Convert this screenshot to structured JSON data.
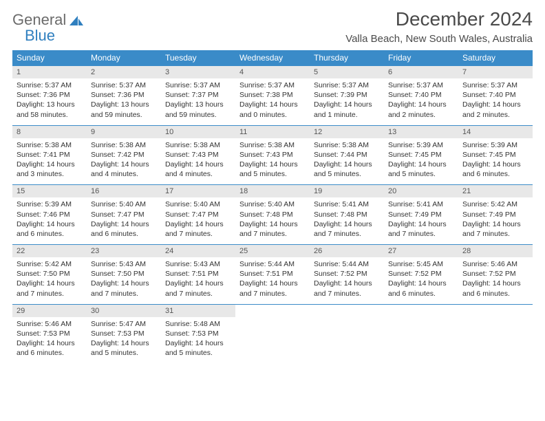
{
  "brand": {
    "general": "General",
    "blue": "Blue"
  },
  "title": "December 2024",
  "location": "Valla Beach, New South Wales, Australia",
  "colors": {
    "header_bg": "#3a8bc8",
    "header_text": "#ffffff",
    "daynum_bg": "#e8e8e8",
    "border": "#3a8bc8",
    "text": "#333333",
    "logo_gray": "#6b6b6b",
    "logo_blue": "#2f7fbf"
  },
  "day_headers": [
    "Sunday",
    "Monday",
    "Tuesday",
    "Wednesday",
    "Thursday",
    "Friday",
    "Saturday"
  ],
  "weeks": [
    {
      "nums": [
        "1",
        "2",
        "3",
        "4",
        "5",
        "6",
        "7"
      ],
      "cells": [
        {
          "sunrise": "Sunrise: 5:37 AM",
          "sunset": "Sunset: 7:36 PM",
          "daylight": "Daylight: 13 hours and 58 minutes."
        },
        {
          "sunrise": "Sunrise: 5:37 AM",
          "sunset": "Sunset: 7:36 PM",
          "daylight": "Daylight: 13 hours and 59 minutes."
        },
        {
          "sunrise": "Sunrise: 5:37 AM",
          "sunset": "Sunset: 7:37 PM",
          "daylight": "Daylight: 13 hours and 59 minutes."
        },
        {
          "sunrise": "Sunrise: 5:37 AM",
          "sunset": "Sunset: 7:38 PM",
          "daylight": "Daylight: 14 hours and 0 minutes."
        },
        {
          "sunrise": "Sunrise: 5:37 AM",
          "sunset": "Sunset: 7:39 PM",
          "daylight": "Daylight: 14 hours and 1 minute."
        },
        {
          "sunrise": "Sunrise: 5:37 AM",
          "sunset": "Sunset: 7:40 PM",
          "daylight": "Daylight: 14 hours and 2 minutes."
        },
        {
          "sunrise": "Sunrise: 5:37 AM",
          "sunset": "Sunset: 7:40 PM",
          "daylight": "Daylight: 14 hours and 2 minutes."
        }
      ]
    },
    {
      "nums": [
        "8",
        "9",
        "10",
        "11",
        "12",
        "13",
        "14"
      ],
      "cells": [
        {
          "sunrise": "Sunrise: 5:38 AM",
          "sunset": "Sunset: 7:41 PM",
          "daylight": "Daylight: 14 hours and 3 minutes."
        },
        {
          "sunrise": "Sunrise: 5:38 AM",
          "sunset": "Sunset: 7:42 PM",
          "daylight": "Daylight: 14 hours and 4 minutes."
        },
        {
          "sunrise": "Sunrise: 5:38 AM",
          "sunset": "Sunset: 7:43 PM",
          "daylight": "Daylight: 14 hours and 4 minutes."
        },
        {
          "sunrise": "Sunrise: 5:38 AM",
          "sunset": "Sunset: 7:43 PM",
          "daylight": "Daylight: 14 hours and 5 minutes."
        },
        {
          "sunrise": "Sunrise: 5:38 AM",
          "sunset": "Sunset: 7:44 PM",
          "daylight": "Daylight: 14 hours and 5 minutes."
        },
        {
          "sunrise": "Sunrise: 5:39 AM",
          "sunset": "Sunset: 7:45 PM",
          "daylight": "Daylight: 14 hours and 5 minutes."
        },
        {
          "sunrise": "Sunrise: 5:39 AM",
          "sunset": "Sunset: 7:45 PM",
          "daylight": "Daylight: 14 hours and 6 minutes."
        }
      ]
    },
    {
      "nums": [
        "15",
        "16",
        "17",
        "18",
        "19",
        "20",
        "21"
      ],
      "cells": [
        {
          "sunrise": "Sunrise: 5:39 AM",
          "sunset": "Sunset: 7:46 PM",
          "daylight": "Daylight: 14 hours and 6 minutes."
        },
        {
          "sunrise": "Sunrise: 5:40 AM",
          "sunset": "Sunset: 7:47 PM",
          "daylight": "Daylight: 14 hours and 6 minutes."
        },
        {
          "sunrise": "Sunrise: 5:40 AM",
          "sunset": "Sunset: 7:47 PM",
          "daylight": "Daylight: 14 hours and 7 minutes."
        },
        {
          "sunrise": "Sunrise: 5:40 AM",
          "sunset": "Sunset: 7:48 PM",
          "daylight": "Daylight: 14 hours and 7 minutes."
        },
        {
          "sunrise": "Sunrise: 5:41 AM",
          "sunset": "Sunset: 7:48 PM",
          "daylight": "Daylight: 14 hours and 7 minutes."
        },
        {
          "sunrise": "Sunrise: 5:41 AM",
          "sunset": "Sunset: 7:49 PM",
          "daylight": "Daylight: 14 hours and 7 minutes."
        },
        {
          "sunrise": "Sunrise: 5:42 AM",
          "sunset": "Sunset: 7:49 PM",
          "daylight": "Daylight: 14 hours and 7 minutes."
        }
      ]
    },
    {
      "nums": [
        "22",
        "23",
        "24",
        "25",
        "26",
        "27",
        "28"
      ],
      "cells": [
        {
          "sunrise": "Sunrise: 5:42 AM",
          "sunset": "Sunset: 7:50 PM",
          "daylight": "Daylight: 14 hours and 7 minutes."
        },
        {
          "sunrise": "Sunrise: 5:43 AM",
          "sunset": "Sunset: 7:50 PM",
          "daylight": "Daylight: 14 hours and 7 minutes."
        },
        {
          "sunrise": "Sunrise: 5:43 AM",
          "sunset": "Sunset: 7:51 PM",
          "daylight": "Daylight: 14 hours and 7 minutes."
        },
        {
          "sunrise": "Sunrise: 5:44 AM",
          "sunset": "Sunset: 7:51 PM",
          "daylight": "Daylight: 14 hours and 7 minutes."
        },
        {
          "sunrise": "Sunrise: 5:44 AM",
          "sunset": "Sunset: 7:52 PM",
          "daylight": "Daylight: 14 hours and 7 minutes."
        },
        {
          "sunrise": "Sunrise: 5:45 AM",
          "sunset": "Sunset: 7:52 PM",
          "daylight": "Daylight: 14 hours and 6 minutes."
        },
        {
          "sunrise": "Sunrise: 5:46 AM",
          "sunset": "Sunset: 7:52 PM",
          "daylight": "Daylight: 14 hours and 6 minutes."
        }
      ]
    },
    {
      "nums": [
        "29",
        "30",
        "31",
        "",
        "",
        "",
        ""
      ],
      "cells": [
        {
          "sunrise": "Sunrise: 5:46 AM",
          "sunset": "Sunset: 7:53 PM",
          "daylight": "Daylight: 14 hours and 6 minutes."
        },
        {
          "sunrise": "Sunrise: 5:47 AM",
          "sunset": "Sunset: 7:53 PM",
          "daylight": "Daylight: 14 hours and 5 minutes."
        },
        {
          "sunrise": "Sunrise: 5:48 AM",
          "sunset": "Sunset: 7:53 PM",
          "daylight": "Daylight: 14 hours and 5 minutes."
        },
        null,
        null,
        null,
        null
      ]
    }
  ]
}
